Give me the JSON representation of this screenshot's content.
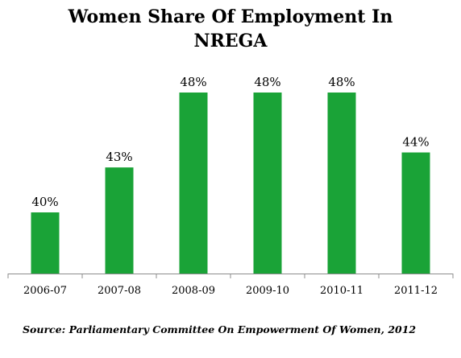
{
  "chart_data": {
    "type": "bar",
    "title_lines": [
      "Women Share Of Employment In",
      "NREGA"
    ],
    "categories": [
      "2006-07",
      "2007-08",
      "2008-09",
      "2009-10",
      "2010-11",
      "2011-12"
    ],
    "values": [
      40,
      43,
      48,
      48,
      48,
      44
    ],
    "data_labels": [
      "40%",
      "43%",
      "48%",
      "48%",
      "48%",
      "44%"
    ],
    "xlabel": "",
    "ylabel": "",
    "bar_color": "#1aa337",
    "grid": false,
    "legend": false
  },
  "source": "Source: Parliamentary Committee On Empowerment Of Women, 2012"
}
